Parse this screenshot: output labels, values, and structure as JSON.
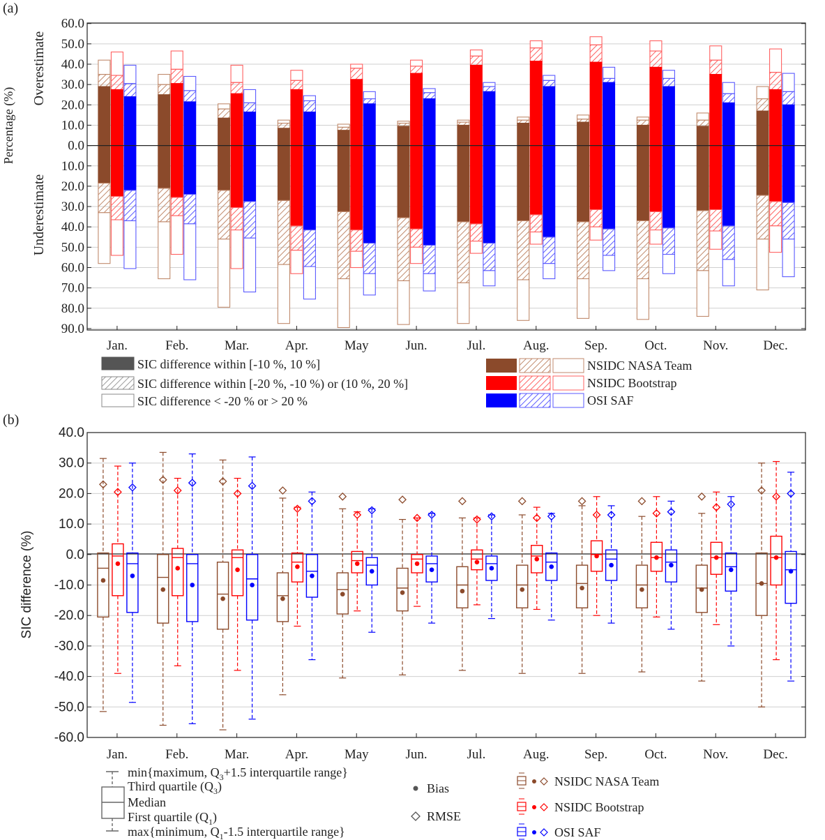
{
  "chart_data": [
    {
      "type": "bar",
      "panel_label": "(a)",
      "ylabel": "Percentage (%)",
      "ylabel_over": "Overestimate",
      "ylabel_under": "Underestimate",
      "y_ticks_over": [
        "60.0",
        "50.0",
        "40.0",
        "30.0",
        "20.0",
        "10.0",
        "0.0"
      ],
      "y_ticks_under": [
        "10.0",
        "20.0",
        "30.0",
        "40.0",
        "50.0",
        "60.0",
        "70.0",
        "80.0",
        "90.0"
      ],
      "ylim_over": [
        0,
        60
      ],
      "ylim_under": [
        0,
        90
      ],
      "categories": [
        "Jan.",
        "Feb.",
        "Mar.",
        "Apr.",
        "May",
        "Jun.",
        "Jul.",
        "Aug.",
        "Sep.",
        "Oct.",
        "Nov.",
        "Dec."
      ],
      "series": [
        {
          "name": "NSIDC NASA Team",
          "color": "#8b4a2b",
          "over_within10": [
            29,
            25,
            13.5,
            8.5,
            7.5,
            9.5,
            10,
            11,
            11.5,
            10,
            9.5,
            17
          ],
          "over_within20": [
            35,
            30,
            18,
            11,
            9,
            11,
            11.5,
            12.5,
            13,
            12.5,
            12.5,
            23
          ],
          "over_total": [
            42,
            35,
            20.5,
            12.5,
            10.5,
            12,
            12.5,
            14,
            15,
            14,
            16,
            29
          ],
          "under_within10": [
            18.5,
            21,
            22,
            27,
            32.5,
            35.5,
            37.5,
            37,
            37.5,
            37,
            32,
            24.5
          ],
          "under_within20": [
            33,
            37.5,
            46,
            58.5,
            65.5,
            66.5,
            67.5,
            66,
            65.5,
            65.5,
            61.5,
            46
          ],
          "under_total": [
            58,
            65.5,
            79.5,
            87.5,
            89.5,
            88,
            87.5,
            86,
            85,
            85.5,
            84,
            71
          ]
        },
        {
          "name": "NSIDC Bootstrap",
          "color": "#ff0000",
          "over_within10": [
            27.5,
            30.5,
            25.5,
            27.5,
            32.5,
            35.5,
            39.5,
            41.5,
            41,
            38.5,
            35,
            27.5
          ],
          "over_within20": [
            34.5,
            37.5,
            31,
            32,
            38,
            39,
            44,
            48,
            49.5,
            46.5,
            42,
            36
          ],
          "over_total": [
            46,
            46.5,
            39.5,
            37,
            40,
            42,
            47,
            51.5,
            53.5,
            51.5,
            49,
            47.5
          ],
          "under_within10": [
            25,
            25.5,
            30.5,
            39.5,
            41.5,
            41,
            38.5,
            34,
            31.5,
            32.5,
            31.5,
            27.5
          ],
          "under_within20": [
            36.5,
            34.5,
            41.5,
            51.5,
            52,
            50,
            47,
            42.5,
            40,
            41.5,
            42,
            39.5
          ],
          "under_total": [
            54,
            53.5,
            60.5,
            63,
            60,
            58,
            53,
            48.5,
            46.5,
            48.5,
            51,
            52.5
          ]
        },
        {
          "name": "OSI SAF",
          "color": "#0000ff",
          "over_within10": [
            24,
            21.5,
            16.5,
            16.5,
            20.5,
            23,
            26.5,
            29,
            31,
            29,
            21,
            20
          ],
          "over_within20": [
            30.5,
            27,
            21,
            22,
            23,
            26,
            29,
            32,
            33,
            33,
            25.5,
            26.5
          ],
          "over_total": [
            39.5,
            34,
            27.5,
            24.5,
            26.5,
            28,
            31,
            34.5,
            38.5,
            37,
            31,
            35.5
          ],
          "under_within10": [
            22,
            24,
            27.5,
            41.5,
            48,
            49,
            48,
            45,
            41,
            40.5,
            39.5,
            28
          ],
          "under_within20": [
            37,
            38.5,
            45.5,
            59.5,
            63,
            63,
            61.5,
            58,
            54,
            53.5,
            56,
            46
          ],
          "under_total": [
            60.5,
            66,
            72,
            75.5,
            73.5,
            71.5,
            69,
            65.5,
            61.5,
            63,
            69,
            64.5
          ]
        }
      ],
      "legend_patterns": [
        "SIC difference within [-10 %, 10 %]",
        "SIC difference within [-20 %, -10 %) or (10 %, 20 %]",
        "SIC difference < -20 % or > 20 %"
      ],
      "legend_products": [
        "NSIDC NASA Team",
        "NSIDC Bootstrap",
        "OSI SAF"
      ]
    },
    {
      "type": "box",
      "panel_label": "(b)",
      "ylabel": "SIC difference (%)",
      "ylim": [
        -60,
        40
      ],
      "y_ticks": [
        "40.0",
        "30.0",
        "20.0",
        "10.0",
        "0.0",
        "-10.0",
        "-20.0",
        "-30.0",
        "-40.0",
        "-50.0",
        "-60.0"
      ],
      "categories": [
        "Jan.",
        "Feb.",
        "Mar.",
        "Apr.",
        "May",
        "Jun.",
        "Jul.",
        "Aug.",
        "Sep.",
        "Oct.",
        "Nov.",
        "Dec."
      ],
      "series": [
        {
          "name": "NSIDC NASA Team",
          "color": "#8b4a2b",
          "whisker_max": [
            31.5,
            33.5,
            31,
            18.5,
            15,
            11.5,
            12,
            13,
            16,
            12.5,
            13.5,
            30
          ],
          "q3": [
            0.5,
            0,
            -2.5,
            -6,
            -6,
            -4.5,
            -4,
            -3.5,
            -3.5,
            -3.5,
            -3.5,
            0.5
          ],
          "median": [
            -4.5,
            -7.5,
            -13,
            -13.5,
            -11.5,
            -11,
            -10,
            -10,
            -9.5,
            -10,
            -11,
            -9.5
          ],
          "q1": [
            -20.5,
            -22.5,
            -24.5,
            -22,
            -19.5,
            -18.5,
            -17.5,
            -17.5,
            -17.5,
            -17.5,
            -19,
            -20
          ],
          "whisker_min": [
            -51.5,
            -56,
            -57.5,
            -46,
            -40.5,
            -39.5,
            -38,
            -39,
            -39,
            -38.5,
            -41.5,
            -50
          ],
          "bias": [
            -8.5,
            -11.5,
            -14.5,
            -14.5,
            -13,
            -12.5,
            -12,
            -11.5,
            -11,
            -11.5,
            -11.5,
            -9.5
          ],
          "rmse": [
            23,
            24.5,
            24,
            21,
            19,
            18,
            17.5,
            17.5,
            17.5,
            17.5,
            19,
            21
          ]
        },
        {
          "name": "NSIDC Bootstrap",
          "color": "#ff0000",
          "whisker_max": [
            29,
            25,
            25,
            15.5,
            14,
            12,
            12,
            15.5,
            19,
            19,
            20.5,
            30.5
          ],
          "q3": [
            3.5,
            2,
            1.5,
            0.5,
            1,
            0,
            1.5,
            3,
            4.5,
            4,
            4,
            6
          ],
          "median": [
            -0.5,
            -1,
            -1,
            -2.5,
            -2,
            -1.5,
            -1.5,
            -0.5,
            0,
            -1,
            -1,
            -1
          ],
          "q1": [
            -13.5,
            -13.5,
            -13.5,
            -9,
            -6,
            -6,
            -5,
            -6,
            -5.5,
            -5.5,
            -6.5,
            -10
          ],
          "whisker_min": [
            -39,
            -36.5,
            -38,
            -23.5,
            -18.5,
            -17,
            -16.5,
            -18,
            -20,
            -20.5,
            -23,
            -34.5
          ],
          "bias": [
            -3,
            -4.5,
            -5,
            -4,
            -3,
            -3,
            -2.5,
            -1.5,
            -0.5,
            -1,
            -1,
            -1
          ],
          "rmse": [
            20.5,
            21,
            20,
            15,
            13,
            12,
            11.5,
            12,
            13,
            13.5,
            15.5,
            19
          ]
        },
        {
          "name": "OSI SAF",
          "color": "#0000ff",
          "whisker_max": [
            30,
            33,
            32,
            20.5,
            15,
            13.5,
            13,
            13.5,
            16,
            17.5,
            19,
            27
          ],
          "q3": [
            0.5,
            0,
            0,
            0,
            -1,
            -0.5,
            -0.5,
            0.5,
            1.5,
            1.5,
            0.5,
            1
          ],
          "median": [
            -3,
            -3,
            -8,
            -5.5,
            -3.5,
            -3,
            -3,
            -2.5,
            -1.5,
            -2.5,
            -4,
            -5
          ],
          "q1": [
            -19,
            -22,
            -21.5,
            -14,
            -10,
            -9,
            -8.5,
            -8.5,
            -8.5,
            -9,
            -12,
            -16
          ],
          "whisker_min": [
            -48.5,
            -55.5,
            -54,
            -34.5,
            -25.5,
            -22.5,
            -21,
            -21.5,
            -22.5,
            -24.5,
            -30,
            -41.5
          ],
          "bias": [
            -7,
            -10,
            -10,
            -7,
            -5.5,
            -5,
            -4.5,
            -4,
            -3.5,
            -3.5,
            -5,
            -5.5
          ],
          "rmse": [
            22,
            23.5,
            22.5,
            17.5,
            14.5,
            13,
            12.5,
            12.5,
            13,
            14,
            16.5,
            20
          ]
        }
      ],
      "legend_box": {
        "max_label": "min{maximum, Q",
        "max_sub": "3",
        "max_tail": "+1.5 interquartile range}",
        "q3_label": "Third quartile (Q",
        "q3_sub": "3",
        "median_label": "Median",
        "q1_label": "First quartile (Q",
        "q1_sub": "1",
        "min_label": "max{minimum, Q",
        "min_sub": "1",
        "min_tail": "-1.5 interquartile range}",
        "close_paren": ")"
      },
      "legend_markers": [
        "Bias",
        "RMSE"
      ],
      "legend_products": [
        "NSIDC NASA Team",
        "NSIDC Bootstrap",
        "OSI SAF"
      ]
    }
  ]
}
